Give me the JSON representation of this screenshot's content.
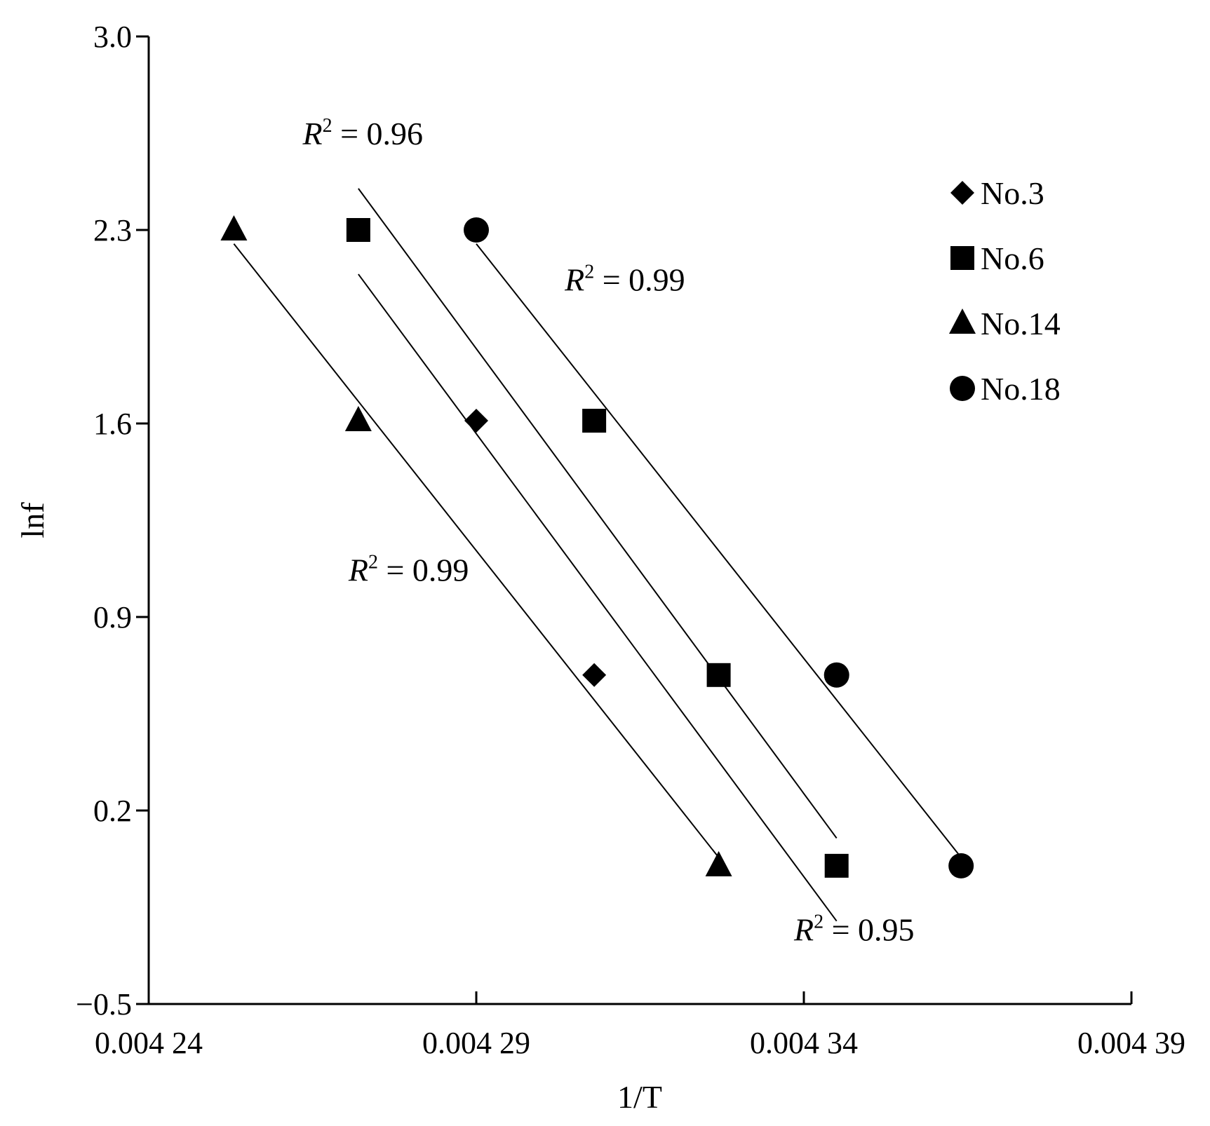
{
  "chart_data": {
    "type": "scatter",
    "xlabel": "1/T",
    "ylabel": "lnf",
    "xlim": [
      0.00424,
      0.00439
    ],
    "ylim": [
      -0.5,
      3.0
    ],
    "x_ticks": [
      {
        "value": 0.00424,
        "label": "0.004 24"
      },
      {
        "value": 0.00429,
        "label": "0.004 29"
      },
      {
        "value": 0.00434,
        "label": "0.004 34"
      },
      {
        "value": 0.00439,
        "label": "0.004 39"
      }
    ],
    "y_ticks": [
      {
        "value": 3.0,
        "label": "3.0"
      },
      {
        "value": 2.3,
        "label": "2.3"
      },
      {
        "value": 1.6,
        "label": "1.6"
      },
      {
        "value": 0.9,
        "label": "0.9"
      },
      {
        "value": 0.2,
        "label": "0.2"
      },
      {
        "value": -0.5,
        "label": "−0.5"
      }
    ],
    "grid": false,
    "legend_position": "top-right",
    "series": [
      {
        "name": "No.3",
        "marker": "diamond",
        "points": [
          {
            "x": 0.004272,
            "y": 2.3
          },
          {
            "x": 0.00429,
            "y": 1.61
          },
          {
            "x": 0.004308,
            "y": 0.69
          }
        ],
        "fit": [
          {
            "x": 0.004272,
            "y": 2.14
          },
          {
            "x": 0.004345,
            "y": -0.2
          }
        ]
      },
      {
        "name": "No.6",
        "marker": "square",
        "points": [
          {
            "x": 0.004272,
            "y": 2.3
          },
          {
            "x": 0.004308,
            "y": 1.61
          },
          {
            "x": 0.004327,
            "y": 0.69
          },
          {
            "x": 0.004345,
            "y": 0.0
          }
        ],
        "fit": [
          {
            "x": 0.004272,
            "y": 2.45
          },
          {
            "x": 0.004345,
            "y": 0.1
          }
        ]
      },
      {
        "name": "No.14",
        "marker": "triangle",
        "points": [
          {
            "x": 0.004253,
            "y": 2.3
          },
          {
            "x": 0.004272,
            "y": 1.61
          },
          {
            "x": 0.004327,
            "y": 0.0
          }
        ],
        "fit": [
          {
            "x": 0.004253,
            "y": 2.25
          },
          {
            "x": 0.004327,
            "y": 0.03
          }
        ]
      },
      {
        "name": "No.18",
        "marker": "circle",
        "points": [
          {
            "x": 0.00429,
            "y": 2.3
          },
          {
            "x": 0.004345,
            "y": 0.69
          },
          {
            "x": 0.004364,
            "y": 0.0
          }
        ],
        "fit": [
          {
            "x": 0.00429,
            "y": 2.25
          },
          {
            "x": 0.004364,
            "y": 0.03
          }
        ]
      }
    ],
    "annotations": [
      {
        "var": "R",
        "sup": "2",
        "text": " = 0.96",
        "x": 0.0042635,
        "y": 2.61
      },
      {
        "var": "R",
        "sup": "2",
        "text": " = 0.99",
        "x": 0.0043035,
        "y": 2.08
      },
      {
        "var": "R",
        "sup": "2",
        "text": " = 0.99",
        "x": 0.0042705,
        "y": 1.03
      },
      {
        "var": "R",
        "sup": "2",
        "text": " = 0.95",
        "x": 0.0043385,
        "y": -0.27
      }
    ]
  }
}
